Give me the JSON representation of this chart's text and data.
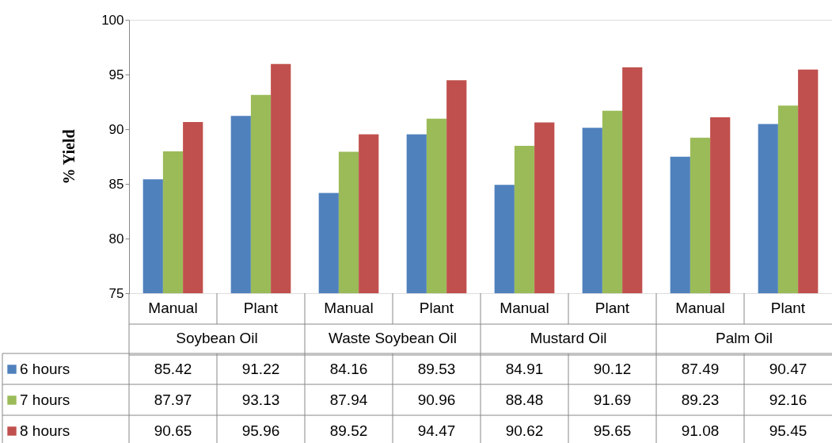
{
  "chart_data": {
    "type": "bar",
    "ylabel": "% Yield",
    "categories": [
      "Manual",
      "Plant",
      "Manual",
      "Plant",
      "Manual",
      "Plant",
      "Manual",
      "Plant"
    ],
    "annotations": [
      "Soybean Oil",
      "Waste Soybean Oil",
      "Mustard Oil",
      "Palm Oil"
    ],
    "series": [
      {
        "name": "6 hours",
        "color": "#4f81bd",
        "values": [
          85.42,
          91.22,
          84.16,
          89.53,
          84.91,
          90.12,
          87.49,
          90.47
        ]
      },
      {
        "name": "7 hours",
        "color": "#9bbb59",
        "values": [
          87.97,
          93.13,
          87.94,
          90.96,
          88.48,
          91.69,
          89.23,
          92.16
        ]
      },
      {
        "name": "8 hours",
        "color": "#c0504d",
        "values": [
          90.65,
          95.96,
          89.52,
          94.47,
          90.62,
          95.65,
          91.08,
          95.45
        ]
      }
    ],
    "ylim": [
      75,
      100
    ],
    "yticks": [
      75,
      80,
      85,
      90,
      95,
      100
    ],
    "grid": false,
    "legend": "bottom left",
    "data_labels": true
  }
}
